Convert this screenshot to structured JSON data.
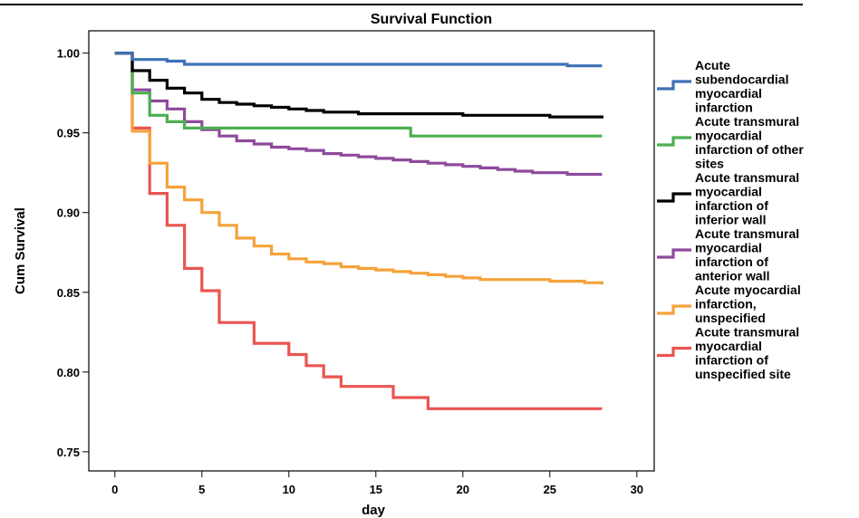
{
  "chart_data": {
    "type": "line",
    "step": true,
    "title": "Survival Function",
    "xlabel": "day",
    "ylabel": "Cum Survival",
    "xlim": [
      -1.5,
      31
    ],
    "ylim": [
      0.738,
      1.014
    ],
    "xticks": [
      0,
      5,
      10,
      15,
      20,
      25,
      30
    ],
    "yticks": [
      1.0,
      0.95,
      0.9,
      0.85,
      0.8,
      0.75
    ],
    "ytick_labels": [
      "1.00",
      "0.95",
      "0.90",
      "0.85",
      "0.80",
      "0.75"
    ],
    "legend_position": "right",
    "grid": false,
    "series": [
      {
        "name": "Acute subendocardial myocardial infarction",
        "legend_lines": [
          "Acute",
          "subendocardial",
          "myocardial",
          "infarction"
        ],
        "color": "#3e72b6",
        "points": [
          [
            0,
            1.0
          ],
          [
            1,
            0.996
          ],
          [
            3,
            0.995
          ],
          [
            4,
            0.993
          ],
          [
            26,
            0.992
          ],
          [
            28,
            0.992
          ]
        ]
      },
      {
        "name": "Acute transmural myocardial infarction of other sites",
        "legend_lines": [
          "Acute transmural",
          "myocardial",
          "infarction of other",
          "sites"
        ],
        "color": "#4caf50",
        "points": [
          [
            0,
            1.0
          ],
          [
            1,
            0.975
          ],
          [
            2,
            0.961
          ],
          [
            3,
            0.957
          ],
          [
            4,
            0.953
          ],
          [
            17,
            0.948
          ],
          [
            28,
            0.948
          ]
        ]
      },
      {
        "name": "Acute transmural myocardial infarction of inferior wall",
        "legend_lines": [
          "Acute transmural",
          "myocardial",
          "infarction of",
          "inferior wall"
        ],
        "color": "#000000",
        "points": [
          [
            0,
            1.0
          ],
          [
            1,
            0.989
          ],
          [
            2,
            0.983
          ],
          [
            3,
            0.978
          ],
          [
            4,
            0.975
          ],
          [
            5,
            0.971
          ],
          [
            6,
            0.969
          ],
          [
            7,
            0.968
          ],
          [
            8,
            0.967
          ],
          [
            9,
            0.966
          ],
          [
            10,
            0.965
          ],
          [
            11,
            0.964
          ],
          [
            12,
            0.963
          ],
          [
            14,
            0.962
          ],
          [
            20,
            0.961
          ],
          [
            25,
            0.96
          ],
          [
            28,
            0.959
          ]
        ]
      },
      {
        "name": "Acute transmural myocardial infarction of anterior wall",
        "legend_lines": [
          "Acute transmural",
          "myocardial",
          "infarction of",
          "anterior wall"
        ],
        "color": "#8e4a9c",
        "points": [
          [
            0,
            1.0
          ],
          [
            1,
            0.977
          ],
          [
            2,
            0.97
          ],
          [
            3,
            0.965
          ],
          [
            4,
            0.957
          ],
          [
            5,
            0.952
          ],
          [
            6,
            0.948
          ],
          [
            7,
            0.945
          ],
          [
            8,
            0.943
          ],
          [
            9,
            0.941
          ],
          [
            10,
            0.94
          ],
          [
            11,
            0.939
          ],
          [
            12,
            0.937
          ],
          [
            13,
            0.936
          ],
          [
            14,
            0.935
          ],
          [
            15,
            0.934
          ],
          [
            16,
            0.933
          ],
          [
            17,
            0.932
          ],
          [
            18,
            0.931
          ],
          [
            19,
            0.93
          ],
          [
            20,
            0.929
          ],
          [
            21,
            0.928
          ],
          [
            22,
            0.927
          ],
          [
            23,
            0.926
          ],
          [
            24,
            0.925
          ],
          [
            26,
            0.924
          ],
          [
            28,
            0.924
          ]
        ]
      },
      {
        "name": "Acute myocardial infarction, unspecified",
        "legend_lines": [
          "Acute myocardial",
          "infarction,",
          "unspecified"
        ],
        "color": "#f5a23b",
        "points": [
          [
            0,
            1.0
          ],
          [
            1,
            0.951
          ],
          [
            2,
            0.931
          ],
          [
            3,
            0.916
          ],
          [
            4,
            0.908
          ],
          [
            5,
            0.9
          ],
          [
            6,
            0.892
          ],
          [
            7,
            0.884
          ],
          [
            8,
            0.879
          ],
          [
            9,
            0.874
          ],
          [
            10,
            0.871
          ],
          [
            11,
            0.869
          ],
          [
            12,
            0.868
          ],
          [
            13,
            0.866
          ],
          [
            14,
            0.865
          ],
          [
            15,
            0.864
          ],
          [
            16,
            0.863
          ],
          [
            17,
            0.862
          ],
          [
            18,
            0.861
          ],
          [
            19,
            0.86
          ],
          [
            20,
            0.859
          ],
          [
            21,
            0.858
          ],
          [
            25,
            0.857
          ],
          [
            27,
            0.856
          ],
          [
            28,
            0.855
          ]
        ]
      },
      {
        "name": "Acute transmural myocardial infarction of unspecified site",
        "legend_lines": [
          "Acute transmural",
          "myocardial",
          "infarction of",
          "unspecified site"
        ],
        "color": "#ea5550",
        "points": [
          [
            0,
            1.0
          ],
          [
            1,
            0.953
          ],
          [
            2,
            0.912
          ],
          [
            3,
            0.892
          ],
          [
            4,
            0.865
          ],
          [
            5,
            0.851
          ],
          [
            6,
            0.831
          ],
          [
            8,
            0.818
          ],
          [
            10,
            0.811
          ],
          [
            11,
            0.804
          ],
          [
            12,
            0.797
          ],
          [
            13,
            0.791
          ],
          [
            16,
            0.784
          ],
          [
            18,
            0.777
          ],
          [
            28,
            0.777
          ]
        ]
      }
    ]
  }
}
